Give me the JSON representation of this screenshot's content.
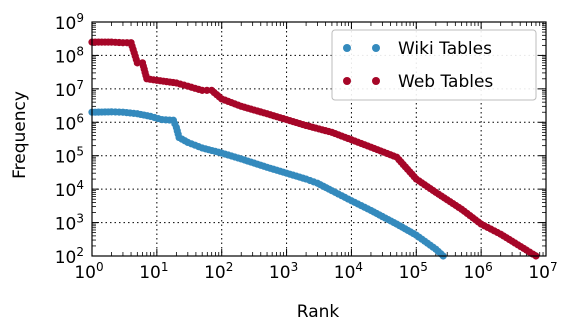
{
  "chart_data": {
    "type": "scatter",
    "xlabel": "Rank",
    "ylabel": "Frequency",
    "xscale": "log",
    "yscale": "log",
    "xlim": [
      1,
      10000000
    ],
    "ylim": [
      100,
      1000000000
    ],
    "x_ticks": [
      {
        "base": "10",
        "exp": "0",
        "value": 1
      },
      {
        "base": "10",
        "exp": "1",
        "value": 10
      },
      {
        "base": "10",
        "exp": "2",
        "value": 100
      },
      {
        "base": "10",
        "exp": "3",
        "value": 1000
      },
      {
        "base": "10",
        "exp": "4",
        "value": 10000
      },
      {
        "base": "10",
        "exp": "5",
        "value": 100000
      },
      {
        "base": "10",
        "exp": "6",
        "value": 1000000
      },
      {
        "base": "10",
        "exp": "7",
        "value": 10000000
      }
    ],
    "y_ticks": [
      {
        "base": "10",
        "exp": "2",
        "value": 100
      },
      {
        "base": "10",
        "exp": "3",
        "value": 1000
      },
      {
        "base": "10",
        "exp": "4",
        "value": 10000
      },
      {
        "base": "10",
        "exp": "5",
        "value": 100000
      },
      {
        "base": "10",
        "exp": "6",
        "value": 1000000
      },
      {
        "base": "10",
        "exp": "7",
        "value": 10000000
      },
      {
        "base": "10",
        "exp": "8",
        "value": 100000000
      },
      {
        "base": "10",
        "exp": "9",
        "value": 1000000000
      }
    ],
    "grid": true,
    "legend_position": "top-right",
    "series": [
      {
        "name": "Wiki Tables",
        "color": "#348abd",
        "x": [
          1,
          2,
          3,
          5,
          8,
          12,
          18,
          20,
          22,
          30,
          50,
          100,
          200,
          500,
          1000,
          2000,
          3000,
          5000,
          10000,
          20000,
          50000,
          100000,
          200000,
          260000
        ],
        "y": [
          2000000,
          2050000,
          2000000,
          1800000,
          1500000,
          1200000,
          1150000,
          700000,
          350000,
          250000,
          170000,
          120000,
          80000,
          45000,
          30000,
          20000,
          15000,
          9000,
          4500,
          2300,
          900,
          420,
          160,
          100
        ]
      },
      {
        "name": "Web Tables",
        "color": "#a60628",
        "x": [
          1,
          2,
          3,
          4,
          5,
          6,
          7,
          10,
          20,
          30,
          50,
          70,
          100,
          200,
          500,
          1000,
          2000,
          5000,
          10000,
          20000,
          50000,
          100000,
          200000,
          500000,
          1000000,
          2000000,
          5000000,
          7000000
        ],
        "y": [
          250000000,
          250000000,
          240000000,
          240000000,
          60000000,
          60000000,
          20000000,
          18000000,
          15000000,
          12000000,
          9000000,
          9000000,
          5000000,
          3000000,
          1800000,
          1200000,
          800000,
          500000,
          300000,
          180000,
          90000,
          20000,
          8000,
          2500,
          900,
          450,
          150,
          100
        ]
      }
    ]
  }
}
